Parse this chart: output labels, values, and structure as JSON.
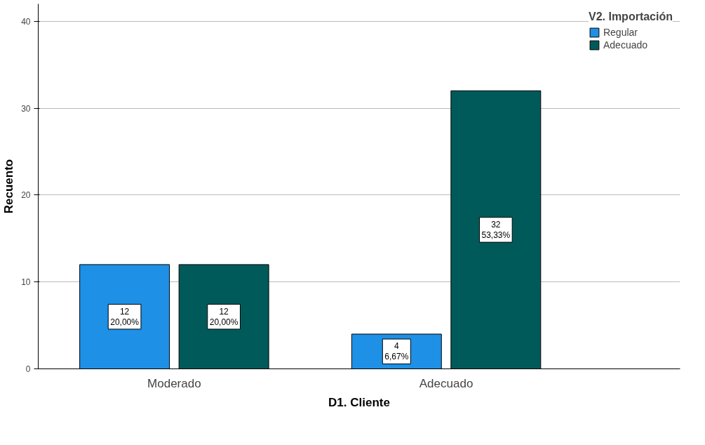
{
  "chart_data": {
    "type": "bar",
    "xlabel": "D1. Cliente",
    "ylabel": "Recuento",
    "legend_title": "V2. Importación",
    "categories": [
      "Moderado",
      "Adecuado"
    ],
    "series": [
      {
        "name": "Regular",
        "color": "#1e90e6",
        "values": [
          12,
          4
        ],
        "value_labels": [
          "12\n20,00%",
          "4\n6,67%"
        ]
      },
      {
        "name": "Adecuado",
        "color": "#005a5a",
        "values": [
          12,
          32
        ],
        "value_labels": [
          "12\n20,00%",
          "32\n53,33%"
        ]
      }
    ],
    "ylim": [
      0,
      42
    ],
    "yticks": [
      0,
      10,
      20,
      30,
      40
    ],
    "grid": "y",
    "legend": "top right"
  }
}
